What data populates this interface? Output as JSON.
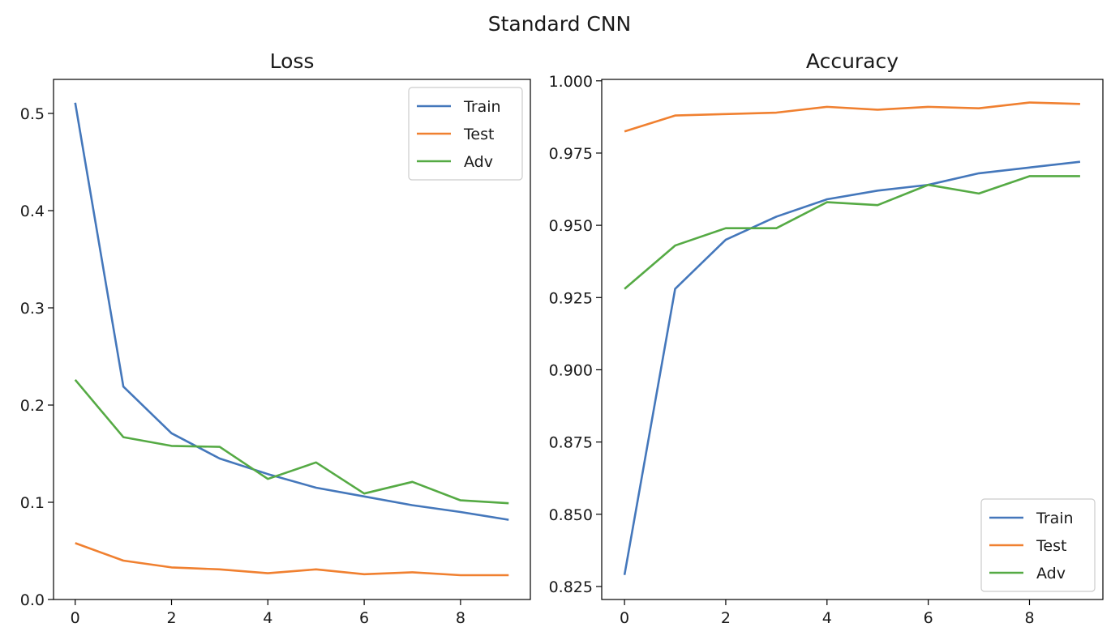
{
  "figure": {
    "title": "Standard CNN"
  },
  "chart_data": [
    {
      "type": "line",
      "title": "Loss",
      "xlabel": "",
      "ylabel": "",
      "x": [
        0,
        1,
        2,
        3,
        4,
        5,
        6,
        7,
        8,
        9
      ],
      "xlim": [
        -0.45,
        9.45
      ],
      "ylim": [
        0.0,
        0.535
      ],
      "xticks": [
        0,
        2,
        4,
        6,
        8
      ],
      "xtick_labels": [
        "0",
        "2",
        "4",
        "6",
        "8"
      ],
      "yticks": [
        0.0,
        0.1,
        0.2,
        0.3,
        0.4,
        0.5
      ],
      "ytick_labels": [
        "0.0",
        "0.1",
        "0.2",
        "0.3",
        "0.4",
        "0.5"
      ],
      "grid": false,
      "legend": "top-right",
      "series": [
        {
          "name": "Train",
          "color": "#4477bb",
          "values": [
            0.511,
            0.219,
            0.171,
            0.145,
            0.129,
            0.115,
            0.106,
            0.097,
            0.09,
            0.082
          ]
        },
        {
          "name": "Test",
          "color": "#f08030",
          "values": [
            0.058,
            0.04,
            0.033,
            0.031,
            0.027,
            0.031,
            0.026,
            0.028,
            0.025,
            0.025
          ]
        },
        {
          "name": "Adv",
          "color": "#55aa44",
          "values": [
            0.226,
            0.167,
            0.158,
            0.157,
            0.124,
            0.141,
            0.109,
            0.121,
            0.102,
            0.099
          ]
        }
      ]
    },
    {
      "type": "line",
      "title": "Accuracy",
      "xlabel": "",
      "ylabel": "",
      "x": [
        0,
        1,
        2,
        3,
        4,
        5,
        6,
        7,
        8,
        9
      ],
      "xlim": [
        -0.45,
        9.45
      ],
      "ylim": [
        0.8205,
        1.0005
      ],
      "xticks": [
        0,
        2,
        4,
        6,
        8
      ],
      "xtick_labels": [
        "0",
        "2",
        "4",
        "6",
        "8"
      ],
      "yticks": [
        0.825,
        0.85,
        0.875,
        0.9,
        0.925,
        0.95,
        0.975,
        1.0
      ],
      "ytick_labels": [
        "0.825",
        "0.850",
        "0.875",
        "0.900",
        "0.925",
        "0.950",
        "0.975",
        "1.000"
      ],
      "grid": false,
      "legend": "bottom-right",
      "series": [
        {
          "name": "Train",
          "color": "#4477bb",
          "values": [
            0.829,
            0.928,
            0.945,
            0.953,
            0.959,
            0.962,
            0.964,
            0.968,
            0.97,
            0.972
          ]
        },
        {
          "name": "Test",
          "color": "#f08030",
          "values": [
            0.9825,
            0.988,
            0.9885,
            0.989,
            0.991,
            0.99,
            0.991,
            0.9905,
            0.9925,
            0.992
          ]
        },
        {
          "name": "Adv",
          "color": "#55aa44",
          "values": [
            0.928,
            0.943,
            0.949,
            0.949,
            0.958,
            0.957,
            0.964,
            0.961,
            0.967,
            0.967
          ]
        }
      ]
    }
  ]
}
